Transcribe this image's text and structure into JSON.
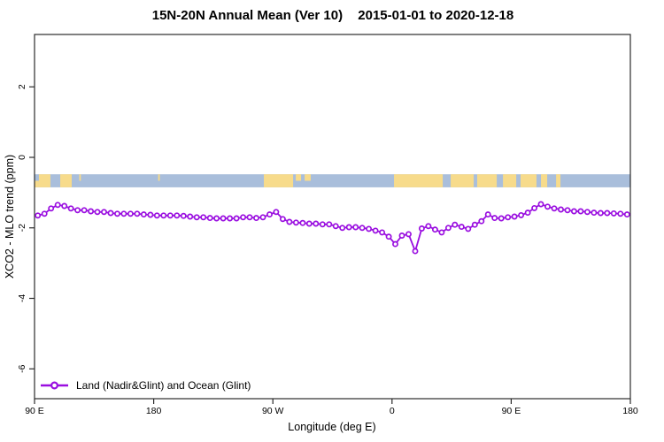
{
  "header": {
    "title_main": "15N-20N Annual Mean (Ver 10)",
    "title_dates": "2015-01-01 to 2020-12-18"
  },
  "legend": {
    "entry": "Land (Nadir&Glint) and Ocean (Glint)"
  },
  "chart_data": {
    "type": "line",
    "title": "15N-20N Annual Mean (Ver 10)   2015-01-01 to 2020-12-18",
    "xlabel": "Longitude (deg E)",
    "ylabel": "XCO2 - MLO trend (ppm)",
    "grid": false,
    "x_axis": {
      "unit": "degrees east of 90E, wrapping around the globe",
      "range_deg": [
        0,
        450
      ],
      "tick_positions_deg": [
        0,
        90,
        180,
        270,
        360,
        450
      ],
      "tick_labels": [
        "90 E",
        "180",
        "90 W",
        "0",
        "90 E",
        "180"
      ]
    },
    "y_axis": {
      "ticks": [
        2,
        0,
        -2,
        -4,
        -6
      ],
      "range": [
        -6.85,
        3.5
      ]
    },
    "legend_position": "bottom-left",
    "series": [
      {
        "name": "Land (Nadir&Glint) and Ocean (Glint)",
        "color": "#9a0ee0",
        "marker": "open-circle",
        "x_start_deg": 2.5,
        "x_step_deg": 5,
        "values": [
          -1.65,
          -1.6,
          -1.45,
          -1.35,
          -1.38,
          -1.45,
          -1.5,
          -1.5,
          -1.53,
          -1.55,
          -1.55,
          -1.58,
          -1.6,
          -1.6,
          -1.6,
          -1.6,
          -1.62,
          -1.63,
          -1.65,
          -1.65,
          -1.65,
          -1.65,
          -1.66,
          -1.68,
          -1.7,
          -1.7,
          -1.72,
          -1.73,
          -1.73,
          -1.73,
          -1.73,
          -1.7,
          -1.7,
          -1.72,
          -1.7,
          -1.62,
          -1.55,
          -1.75,
          -1.83,
          -1.85,
          -1.86,
          -1.88,
          -1.88,
          -1.9,
          -1.9,
          -1.95,
          -2.0,
          -1.98,
          -1.98,
          -2.0,
          -2.03,
          -2.08,
          -2.13,
          -2.25,
          -2.46,
          -2.22,
          -2.18,
          -2.66,
          -2.02,
          -1.95,
          -2.05,
          -2.13,
          -2.0,
          -1.91,
          -1.97,
          -2.03,
          -1.91,
          -1.81,
          -1.62,
          -1.72,
          -1.73,
          -1.7,
          -1.68,
          -1.64,
          -1.57,
          -1.44,
          -1.33,
          -1.4,
          -1.45,
          -1.48,
          -1.5,
          -1.53,
          -1.53,
          -1.55,
          -1.57,
          -1.58,
          -1.58,
          -1.59,
          -1.6,
          -1.62
        ]
      }
    ],
    "surface_band": {
      "description": "land/ocean mask strip drawn across the plot",
      "y_top_ppm": -0.48,
      "y_bottom_ppm": -0.85,
      "ocean_color": "#a9bedb",
      "land_color": "#f7db8b",
      "land_segments_deg": [
        [
          3.3,
          12.0
        ],
        [
          19.4,
          28.1
        ],
        [
          173.2,
          195.3
        ],
        [
          271.5,
          308.3
        ],
        [
          314.3,
          331.7
        ],
        [
          334.3,
          349.1
        ],
        [
          353.8,
          363.8
        ],
        [
          367.1,
          379.1
        ],
        [
          382.5,
          387.2
        ],
        [
          393.9,
          397.2
        ]
      ],
      "islands_top_deg": [
        [
          33.8,
          35.0
        ],
        [
          93.4,
          94.6
        ],
        [
          197.3,
          201.3
        ],
        [
          204.0,
          208.6
        ]
      ],
      "coast_bottom_deg": [
        [
          0.3,
          3.3
        ]
      ]
    }
  }
}
